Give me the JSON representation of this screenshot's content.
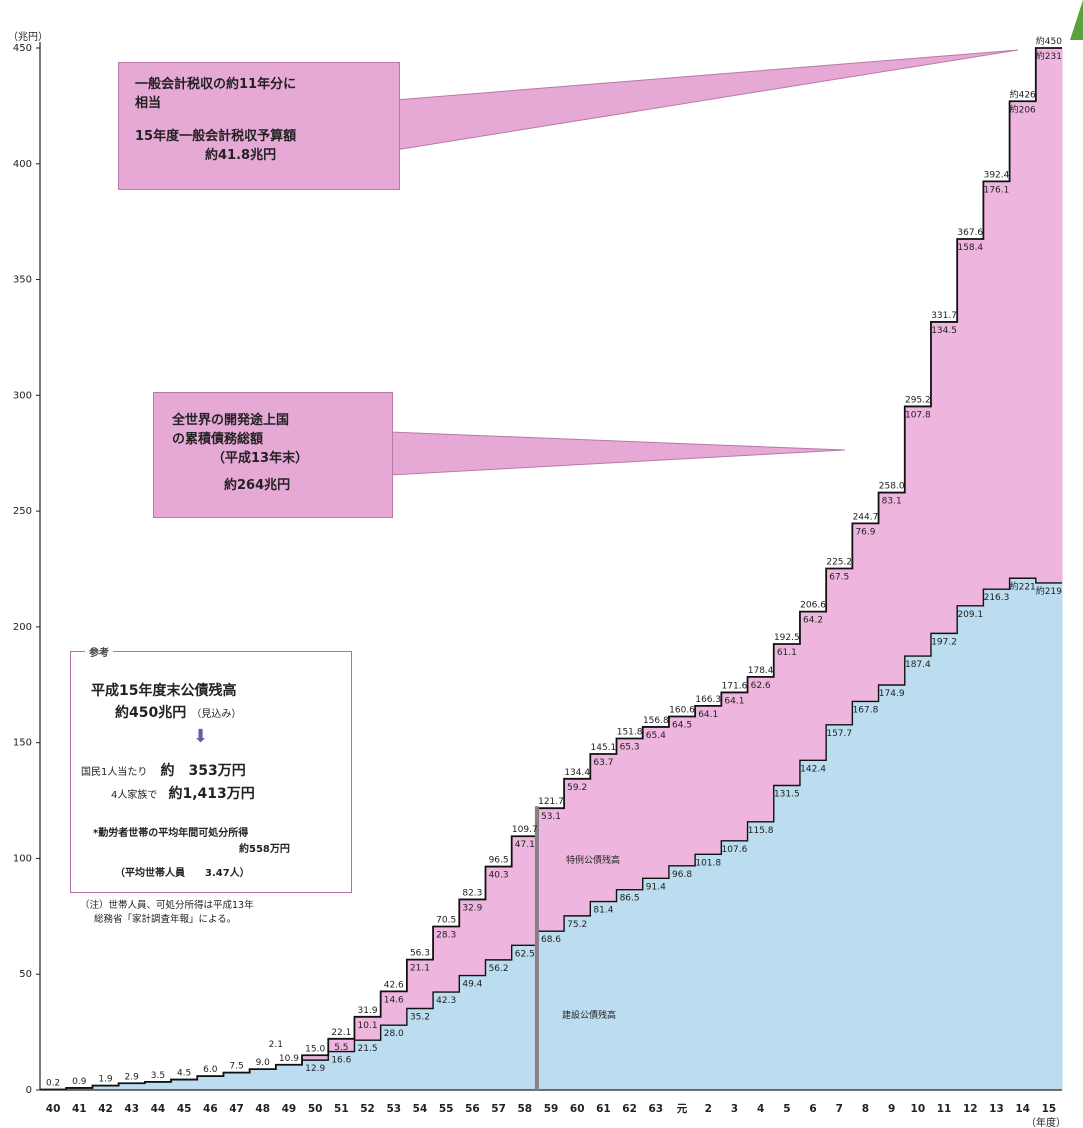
{
  "chart_data": {
    "type": "area",
    "y_unit_label": "（兆円）",
    "x_unit_label": "（年度）",
    "ylim": [
      0,
      450
    ],
    "y_ticks": [
      0,
      50,
      100,
      150,
      200,
      250,
      300,
      350,
      400,
      450
    ],
    "categories": [
      "40",
      "41",
      "42",
      "43",
      "44",
      "45",
      "46",
      "47",
      "48",
      "49",
      "50",
      "51",
      "52",
      "53",
      "54",
      "55",
      "56",
      "57",
      "58",
      "59",
      "60",
      "61",
      "62",
      "63",
      "元",
      "2",
      "3",
      "4",
      "5",
      "6",
      "7",
      "8",
      "9",
      "10",
      "11",
      "12",
      "13",
      "14",
      "15"
    ],
    "series": [
      {
        "name": "建設公債残高",
        "color": "#bcdcf0",
        "values": [
          0.2,
          0.9,
          1.9,
          2.9,
          3.5,
          4.5,
          6.0,
          7.5,
          9.0,
          10.9,
          12.9,
          16.6,
          21.5,
          28.0,
          35.2,
          42.3,
          49.4,
          56.2,
          62.5,
          68.6,
          75.2,
          81.4,
          86.5,
          91.4,
          96.8,
          101.8,
          107.6,
          115.8,
          131.5,
          142.4,
          157.7,
          167.8,
          174.9,
          187.4,
          197.2,
          209.1,
          216.3,
          221,
          219
        ]
      },
      {
        "name": "特例公債残高",
        "color": "#eeb6de",
        "values": [
          0,
          0,
          0,
          0,
          0,
          0,
          0,
          0,
          0,
          0,
          2.1,
          5.5,
          10.1,
          14.6,
          21.1,
          28.3,
          32.9,
          40.3,
          47.1,
          53.1,
          59.2,
          63.7,
          65.3,
          65.4,
          64.5,
          64.1,
          64.1,
          62.6,
          61.1,
          64.2,
          67.5,
          76.9,
          83.1,
          107.8,
          134.5,
          158.4,
          176.1,
          206,
          231
        ]
      }
    ],
    "total_labels": [
      "0.2",
      "0.9",
      "1.9",
      "2.9",
      "3.5",
      "4.5",
      "6.0",
      "7.5",
      "9.0",
      "10.9",
      "15.0",
      "22.1",
      "31.9",
      "42.6",
      "56.3",
      "70.5",
      "82.3",
      "96.5",
      "109.7",
      "121.7",
      "134.4",
      "145.1",
      "151.8",
      "156.8",
      "160.6",
      "166.3",
      "171.6",
      "178.4",
      "192.5",
      "206.6",
      "225.2",
      "244.7",
      "258.0",
      "295.2",
      "331.7",
      "367.6",
      "392.4",
      "約426",
      "約450"
    ],
    "construction_labels": [
      "",
      "",
      "",
      "",
      "",
      "",
      "",
      "",
      "",
      "",
      "12.9",
      "16.6",
      "21.5",
      "28.0",
      "35.2",
      "42.3",
      "49.4",
      "56.2",
      "62.5",
      "68.6",
      "75.2",
      "81.4",
      "86.5",
      "91.4",
      "96.8",
      "101.8",
      "107.6",
      "115.8",
      "131.5",
      "142.4",
      "157.7",
      "167.8",
      "174.9",
      "187.4",
      "197.2",
      "209.1",
      "216.3",
      "約221",
      "約219"
    ],
    "special_labels": [
      "",
      "",
      "",
      "",
      "",
      "",
      "",
      "",
      "",
      "",
      "",
      "5.5",
      "10.1",
      "14.6",
      "21.1",
      "28.3",
      "32.9",
      "40.3",
      "47.1",
      "53.1",
      "59.2",
      "63.7",
      "65.3",
      "65.4",
      "64.5",
      "64.1",
      "64.1",
      "62.6",
      "61.1",
      "64.2",
      "67.5",
      "76.9",
      "83.1",
      "107.8",
      "134.5",
      "158.4",
      "176.1",
      "約206",
      "約231"
    ],
    "annotation_2_1": "2.1",
    "series_labels": {
      "special": "特例公債残高",
      "construction": "建設公債残高"
    },
    "callout_top": {
      "line1": "一般会計税収の約11年分に",
      "line2": "相当",
      "line3": "15年度一般会計税収予算額",
      "line4": "約41.8兆円"
    },
    "callout_mid": {
      "line1": "全世界の開発途上国",
      "line2": "の累積債務総額",
      "line3": "（平成13年末）",
      "line4": "約264兆円"
    },
    "reference": {
      "title": "参考",
      "line1": "平成15年度末公債残高",
      "line2": "約450兆円",
      "line2_small": "（見込み）",
      "arrow": "⬇",
      "line3_a": "国民1人当たり",
      "line3_b": "約　353万円",
      "line4_a": "4人家族で",
      "line4_b": "約1,413万円",
      "line5": "*勤労者世帯の平均年間可処分所得",
      "line6": "約558万円",
      "line7": "（平均世帯人員　　3.47人）"
    },
    "note": {
      "line1": "（注）世帯人員、可処分所得は平成13年",
      "line2": "総務省「家計調査年報」による。"
    }
  }
}
